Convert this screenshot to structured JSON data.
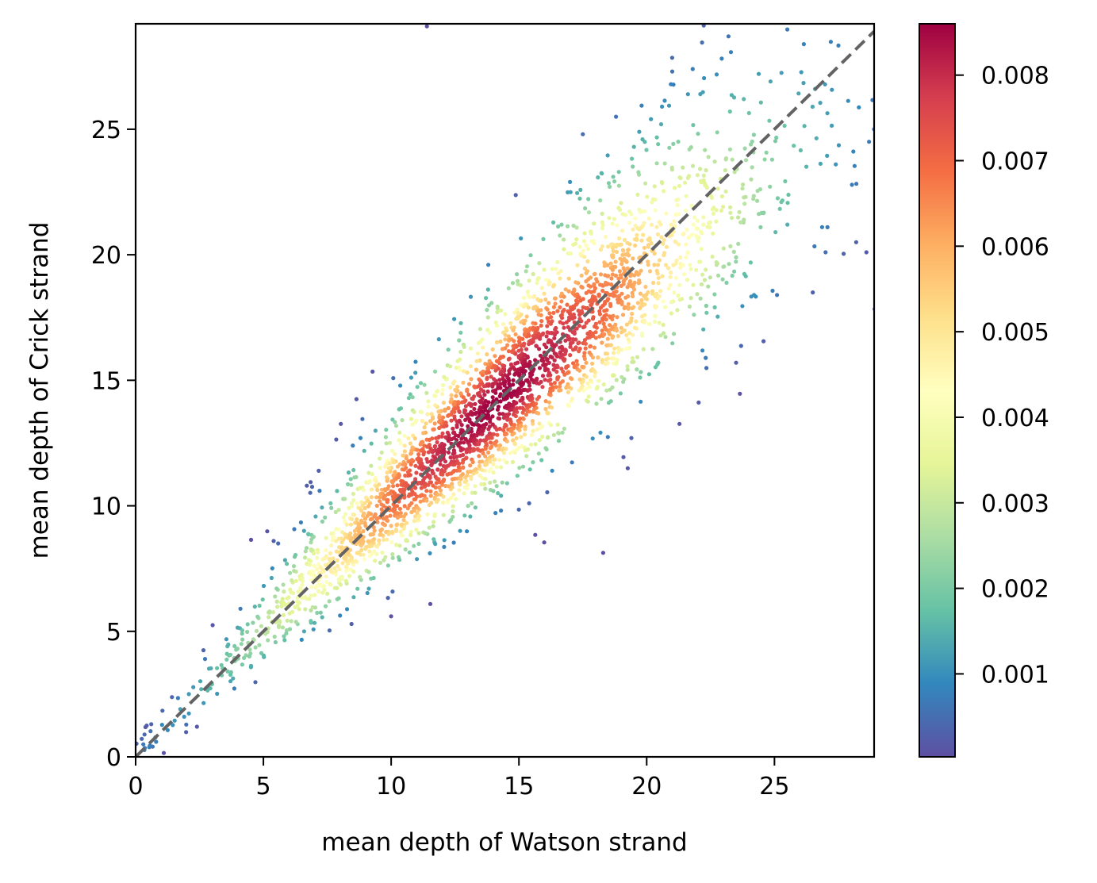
{
  "chart_data": {
    "type": "scatter",
    "title": "",
    "xlabel": "mean depth of Watson strand",
    "ylabel": "mean depth of Crick strand",
    "xlim": [
      0,
      28.9
    ],
    "ylim": [
      0,
      29.2
    ],
    "x_ticks": [
      0,
      5,
      10,
      15,
      20,
      25
    ],
    "y_ticks": [
      0,
      5,
      10,
      15,
      20,
      25
    ],
    "x_tick_labels": [
      "0",
      "5",
      "10",
      "15",
      "20",
      "25"
    ],
    "y_tick_labels": [
      "0",
      "5",
      "10",
      "15",
      "20",
      "25"
    ],
    "grid": false,
    "reference_line": {
      "style": "dashed",
      "color": "#636363",
      "from": [
        0,
        0
      ],
      "to": [
        28.9,
        28.9
      ]
    },
    "colorbar": {
      "colormap": "Spectral_r",
      "range": [
        3e-05,
        0.0086
      ],
      "ticks": [
        0.001,
        0.002,
        0.003,
        0.004,
        0.005,
        0.006,
        0.007,
        0.008
      ],
      "tick_labels": [
        "0.001",
        "0.002",
        "0.003",
        "0.004",
        "0.005",
        "0.006",
        "0.007",
        "0.008"
      ]
    },
    "point_color_meaning": "point density (kernel density estimate)",
    "points_approx_count": 3200,
    "points": [
      [
        0.3,
        0.5
      ],
      [
        0.8,
        0.6
      ],
      [
        1.9,
        1.6
      ],
      [
        2.4,
        1.2
      ],
      [
        3.6,
        3.4
      ],
      [
        4.1,
        5.9
      ],
      [
        5.4,
        8.6
      ],
      [
        6.7,
        10.8
      ],
      [
        7.2,
        10.6
      ],
      [
        8.5,
        12.4
      ],
      [
        8.8,
        12.7
      ],
      [
        10.0,
        5.6
      ],
      [
        11.4,
        29.1
      ],
      [
        12.7,
        9.0
      ],
      [
        13.8,
        19.6
      ],
      [
        14.1,
        17.3
      ],
      [
        14.3,
        10.4
      ],
      [
        15.4,
        10.1
      ],
      [
        16.3,
        11.4
      ],
      [
        17.0,
        22.9
      ],
      [
        17.5,
        24.8
      ],
      [
        18.8,
        25.5
      ],
      [
        19.4,
        12.7
      ],
      [
        19.5,
        24.3
      ],
      [
        20.6,
        25.9
      ],
      [
        21.0,
        27.3
      ],
      [
        21.8,
        27.4
      ],
      [
        22.1,
        26.4
      ],
      [
        22.7,
        29.4
      ],
      [
        23.2,
        28.7
      ],
      [
        23.5,
        15.7
      ],
      [
        24.2,
        18.4
      ],
      [
        25.1,
        18.4
      ],
      [
        26.5,
        18.5
      ],
      [
        27.0,
        20.1
      ],
      [
        27.4,
        23.6
      ],
      [
        28.2,
        20.5
      ],
      [
        28.6,
        20.1
      ],
      [
        28.9,
        25.0
      ],
      [
        28.7,
        24.5
      ],
      [
        10.8,
        12.2
      ],
      [
        12.0,
        12.1
      ],
      [
        13.0,
        13.5
      ],
      [
        14.0,
        14.1
      ],
      [
        15.0,
        15.2
      ],
      [
        16.0,
        16.1
      ],
      [
        17.0,
        17.0
      ],
      [
        18.0,
        18.2
      ],
      [
        19.0,
        19.1
      ],
      [
        20.0,
        20.0
      ],
      [
        9.0,
        9.2
      ],
      [
        8.0,
        8.1
      ],
      [
        7.0,
        7.2
      ],
      [
        6.0,
        6.1
      ]
    ]
  }
}
